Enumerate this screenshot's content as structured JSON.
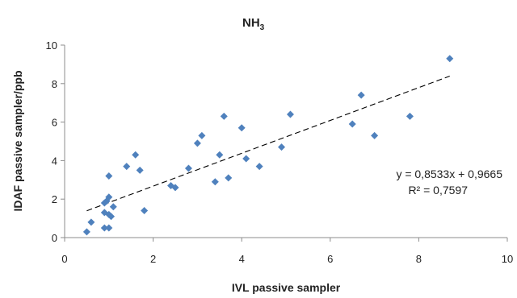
{
  "chart_data": {
    "type": "scatter",
    "title": {
      "main": "NH",
      "sub": "3"
    },
    "xlabel": "IVL passive sampler",
    "ylabel": "IDAF passive sampler/ppb",
    "xlim": [
      0,
      10
    ],
    "ylim": [
      0,
      10
    ],
    "x_ticks": [
      0,
      2,
      4,
      6,
      8,
      10
    ],
    "y_ticks": [
      0,
      2,
      4,
      6,
      8,
      10
    ],
    "x_tick_labels": [
      "0",
      "2",
      "4",
      "6",
      "8",
      "10"
    ],
    "y_tick_labels": [
      "0",
      "2",
      "4",
      "6",
      "8",
      "10"
    ],
    "grid": false,
    "legend": "none",
    "marker_color": "#4f81bd",
    "trendline_color": "#000000",
    "points": [
      {
        "x": 0.5,
        "y": 0.3
      },
      {
        "x": 0.6,
        "y": 0.8
      },
      {
        "x": 0.9,
        "y": 0.5
      },
      {
        "x": 0.9,
        "y": 1.8
      },
      {
        "x": 0.9,
        "y": 1.3
      },
      {
        "x": 0.95,
        "y": 1.9
      },
      {
        "x": 1.0,
        "y": 1.2
      },
      {
        "x": 1.0,
        "y": 2.1
      },
      {
        "x": 1.0,
        "y": 3.2
      },
      {
        "x": 1.0,
        "y": 0.5
      },
      {
        "x": 1.05,
        "y": 1.1
      },
      {
        "x": 1.1,
        "y": 1.6
      },
      {
        "x": 1.4,
        "y": 3.7
      },
      {
        "x": 1.6,
        "y": 4.3
      },
      {
        "x": 1.7,
        "y": 3.5
      },
      {
        "x": 1.8,
        "y": 1.4
      },
      {
        "x": 2.4,
        "y": 2.7
      },
      {
        "x": 2.5,
        "y": 2.6
      },
      {
        "x": 2.8,
        "y": 3.6
      },
      {
        "x": 3.0,
        "y": 4.9
      },
      {
        "x": 3.1,
        "y": 5.3
      },
      {
        "x": 3.4,
        "y": 2.9
      },
      {
        "x": 3.5,
        "y": 4.3
      },
      {
        "x": 3.6,
        "y": 6.3
      },
      {
        "x": 3.7,
        "y": 3.1
      },
      {
        "x": 4.0,
        "y": 5.7
      },
      {
        "x": 4.1,
        "y": 4.1
      },
      {
        "x": 4.4,
        "y": 3.7
      },
      {
        "x": 4.9,
        "y": 4.7
      },
      {
        "x": 5.1,
        "y": 6.4
      },
      {
        "x": 6.5,
        "y": 5.9
      },
      {
        "x": 6.7,
        "y": 7.4
      },
      {
        "x": 7.0,
        "y": 5.3
      },
      {
        "x": 7.8,
        "y": 6.3
      },
      {
        "x": 8.7,
        "y": 9.3
      }
    ],
    "trendline": {
      "slope": 0.8533,
      "intercept": 0.9665,
      "x_start": 0.5,
      "x_end": 8.7
    },
    "annotations": {
      "equation": "y = 0,8533x + 0,9665",
      "r_squared": "R² = 0,7597"
    }
  }
}
